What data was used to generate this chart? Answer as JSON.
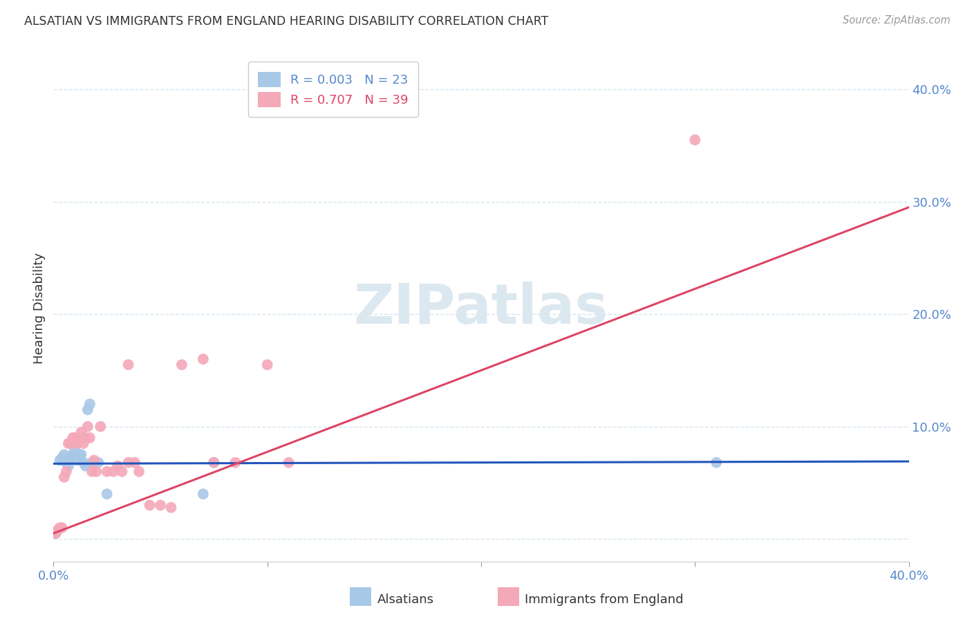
{
  "title": "ALSATIAN VS IMMIGRANTS FROM ENGLAND HEARING DISABILITY CORRELATION CHART",
  "source": "Source: ZipAtlas.com",
  "ylabel": "Hearing Disability",
  "xlim": [
    0.0,
    0.4
  ],
  "ylim": [
    -0.02,
    0.43
  ],
  "blue_color": "#a8c8e8",
  "pink_color": "#f4a8b8",
  "blue_line_color": "#2255bb",
  "pink_line_color": "#dd4466",
  "title_color": "#333333",
  "axis_tick_color": "#5588cc",
  "grid_color": "#d5e5f0",
  "background_color": "#ffffff",
  "watermark_text": "ZIPatlas",
  "watermark_color": "#dce8f0",
  "legend_blue_label": "R = 0.003   N = 23",
  "legend_pink_label": "R = 0.707   N = 39",
  "legend_label_blue": "Alsatians",
  "legend_label_pink": "Immigrants from England",
  "blue_scatter_x": [
    0.001,
    0.003,
    0.004,
    0.005,
    0.006,
    0.007,
    0.008,
    0.009,
    0.01,
    0.01,
    0.011,
    0.012,
    0.013,
    0.014,
    0.015,
    0.016,
    0.017,
    0.018,
    0.021,
    0.025,
    0.07,
    0.075,
    0.31
  ],
  "blue_scatter_y": [
    0.005,
    0.07,
    0.072,
    0.075,
    0.068,
    0.065,
    0.072,
    0.075,
    0.075,
    0.08,
    0.07,
    0.075,
    0.075,
    0.068,
    0.065,
    0.115,
    0.12,
    0.068,
    0.068,
    0.04,
    0.04,
    0.068,
    0.068
  ],
  "pink_scatter_x": [
    0.001,
    0.002,
    0.003,
    0.004,
    0.005,
    0.006,
    0.007,
    0.008,
    0.009,
    0.01,
    0.011,
    0.012,
    0.013,
    0.014,
    0.015,
    0.016,
    0.017,
    0.018,
    0.019,
    0.02,
    0.022,
    0.025,
    0.028,
    0.03,
    0.032,
    0.035,
    0.038,
    0.04,
    0.045,
    0.05,
    0.055,
    0.06,
    0.07,
    0.075,
    0.085,
    0.1,
    0.11,
    0.3,
    0.035
  ],
  "pink_scatter_y": [
    0.005,
    0.008,
    0.01,
    0.01,
    0.055,
    0.06,
    0.085,
    0.085,
    0.09,
    0.09,
    0.085,
    0.088,
    0.095,
    0.085,
    0.09,
    0.1,
    0.09,
    0.06,
    0.07,
    0.06,
    0.1,
    0.06,
    0.06,
    0.065,
    0.06,
    0.068,
    0.068,
    0.06,
    0.03,
    0.03,
    0.028,
    0.155,
    0.16,
    0.068,
    0.068,
    0.155,
    0.068,
    0.355,
    0.155
  ],
  "blue_line_x": [
    0.0,
    0.4
  ],
  "blue_line_y": [
    0.067,
    0.069
  ],
  "pink_line_x": [
    0.0,
    0.4
  ],
  "pink_line_y": [
    0.005,
    0.295
  ]
}
